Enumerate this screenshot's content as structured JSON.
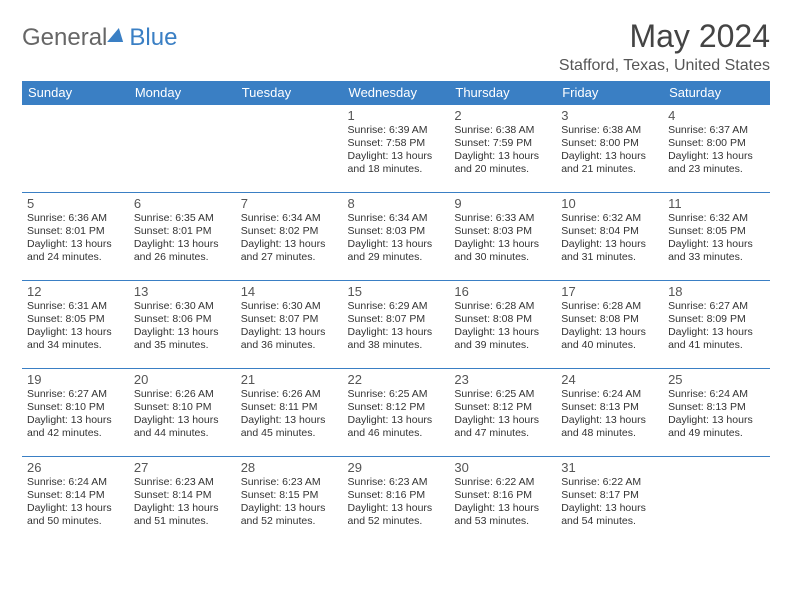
{
  "logo": {
    "part1": "General",
    "part2": "Blue"
  },
  "title": "May 2024",
  "location": "Stafford, Texas, United States",
  "colors": {
    "header_bg": "#3a7fc4",
    "header_text": "#ffffff",
    "border": "#3a7fc4",
    "text": "#333333",
    "logo_gray": "#666666",
    "logo_blue": "#3a7fc4"
  },
  "weekdays": [
    "Sunday",
    "Monday",
    "Tuesday",
    "Wednesday",
    "Thursday",
    "Friday",
    "Saturday"
  ],
  "weeks": [
    [
      {
        "n": "",
        "sr": "",
        "ss": "",
        "dl": ""
      },
      {
        "n": "",
        "sr": "",
        "ss": "",
        "dl": ""
      },
      {
        "n": "",
        "sr": "",
        "ss": "",
        "dl": ""
      },
      {
        "n": "1",
        "sr": "Sunrise: 6:39 AM",
        "ss": "Sunset: 7:58 PM",
        "dl": "Daylight: 13 hours and 18 minutes."
      },
      {
        "n": "2",
        "sr": "Sunrise: 6:38 AM",
        "ss": "Sunset: 7:59 PM",
        "dl": "Daylight: 13 hours and 20 minutes."
      },
      {
        "n": "3",
        "sr": "Sunrise: 6:38 AM",
        "ss": "Sunset: 8:00 PM",
        "dl": "Daylight: 13 hours and 21 minutes."
      },
      {
        "n": "4",
        "sr": "Sunrise: 6:37 AM",
        "ss": "Sunset: 8:00 PM",
        "dl": "Daylight: 13 hours and 23 minutes."
      }
    ],
    [
      {
        "n": "5",
        "sr": "Sunrise: 6:36 AM",
        "ss": "Sunset: 8:01 PM",
        "dl": "Daylight: 13 hours and 24 minutes."
      },
      {
        "n": "6",
        "sr": "Sunrise: 6:35 AM",
        "ss": "Sunset: 8:01 PM",
        "dl": "Daylight: 13 hours and 26 minutes."
      },
      {
        "n": "7",
        "sr": "Sunrise: 6:34 AM",
        "ss": "Sunset: 8:02 PM",
        "dl": "Daylight: 13 hours and 27 minutes."
      },
      {
        "n": "8",
        "sr": "Sunrise: 6:34 AM",
        "ss": "Sunset: 8:03 PM",
        "dl": "Daylight: 13 hours and 29 minutes."
      },
      {
        "n": "9",
        "sr": "Sunrise: 6:33 AM",
        "ss": "Sunset: 8:03 PM",
        "dl": "Daylight: 13 hours and 30 minutes."
      },
      {
        "n": "10",
        "sr": "Sunrise: 6:32 AM",
        "ss": "Sunset: 8:04 PM",
        "dl": "Daylight: 13 hours and 31 minutes."
      },
      {
        "n": "11",
        "sr": "Sunrise: 6:32 AM",
        "ss": "Sunset: 8:05 PM",
        "dl": "Daylight: 13 hours and 33 minutes."
      }
    ],
    [
      {
        "n": "12",
        "sr": "Sunrise: 6:31 AM",
        "ss": "Sunset: 8:05 PM",
        "dl": "Daylight: 13 hours and 34 minutes."
      },
      {
        "n": "13",
        "sr": "Sunrise: 6:30 AM",
        "ss": "Sunset: 8:06 PM",
        "dl": "Daylight: 13 hours and 35 minutes."
      },
      {
        "n": "14",
        "sr": "Sunrise: 6:30 AM",
        "ss": "Sunset: 8:07 PM",
        "dl": "Daylight: 13 hours and 36 minutes."
      },
      {
        "n": "15",
        "sr": "Sunrise: 6:29 AM",
        "ss": "Sunset: 8:07 PM",
        "dl": "Daylight: 13 hours and 38 minutes."
      },
      {
        "n": "16",
        "sr": "Sunrise: 6:28 AM",
        "ss": "Sunset: 8:08 PM",
        "dl": "Daylight: 13 hours and 39 minutes."
      },
      {
        "n": "17",
        "sr": "Sunrise: 6:28 AM",
        "ss": "Sunset: 8:08 PM",
        "dl": "Daylight: 13 hours and 40 minutes."
      },
      {
        "n": "18",
        "sr": "Sunrise: 6:27 AM",
        "ss": "Sunset: 8:09 PM",
        "dl": "Daylight: 13 hours and 41 minutes."
      }
    ],
    [
      {
        "n": "19",
        "sr": "Sunrise: 6:27 AM",
        "ss": "Sunset: 8:10 PM",
        "dl": "Daylight: 13 hours and 42 minutes."
      },
      {
        "n": "20",
        "sr": "Sunrise: 6:26 AM",
        "ss": "Sunset: 8:10 PM",
        "dl": "Daylight: 13 hours and 44 minutes."
      },
      {
        "n": "21",
        "sr": "Sunrise: 6:26 AM",
        "ss": "Sunset: 8:11 PM",
        "dl": "Daylight: 13 hours and 45 minutes."
      },
      {
        "n": "22",
        "sr": "Sunrise: 6:25 AM",
        "ss": "Sunset: 8:12 PM",
        "dl": "Daylight: 13 hours and 46 minutes."
      },
      {
        "n": "23",
        "sr": "Sunrise: 6:25 AM",
        "ss": "Sunset: 8:12 PM",
        "dl": "Daylight: 13 hours and 47 minutes."
      },
      {
        "n": "24",
        "sr": "Sunrise: 6:24 AM",
        "ss": "Sunset: 8:13 PM",
        "dl": "Daylight: 13 hours and 48 minutes."
      },
      {
        "n": "25",
        "sr": "Sunrise: 6:24 AM",
        "ss": "Sunset: 8:13 PM",
        "dl": "Daylight: 13 hours and 49 minutes."
      }
    ],
    [
      {
        "n": "26",
        "sr": "Sunrise: 6:24 AM",
        "ss": "Sunset: 8:14 PM",
        "dl": "Daylight: 13 hours and 50 minutes."
      },
      {
        "n": "27",
        "sr": "Sunrise: 6:23 AM",
        "ss": "Sunset: 8:14 PM",
        "dl": "Daylight: 13 hours and 51 minutes."
      },
      {
        "n": "28",
        "sr": "Sunrise: 6:23 AM",
        "ss": "Sunset: 8:15 PM",
        "dl": "Daylight: 13 hours and 52 minutes."
      },
      {
        "n": "29",
        "sr": "Sunrise: 6:23 AM",
        "ss": "Sunset: 8:16 PM",
        "dl": "Daylight: 13 hours and 52 minutes."
      },
      {
        "n": "30",
        "sr": "Sunrise: 6:22 AM",
        "ss": "Sunset: 8:16 PM",
        "dl": "Daylight: 13 hours and 53 minutes."
      },
      {
        "n": "31",
        "sr": "Sunrise: 6:22 AM",
        "ss": "Sunset: 8:17 PM",
        "dl": "Daylight: 13 hours and 54 minutes."
      },
      {
        "n": "",
        "sr": "",
        "ss": "",
        "dl": ""
      }
    ]
  ]
}
